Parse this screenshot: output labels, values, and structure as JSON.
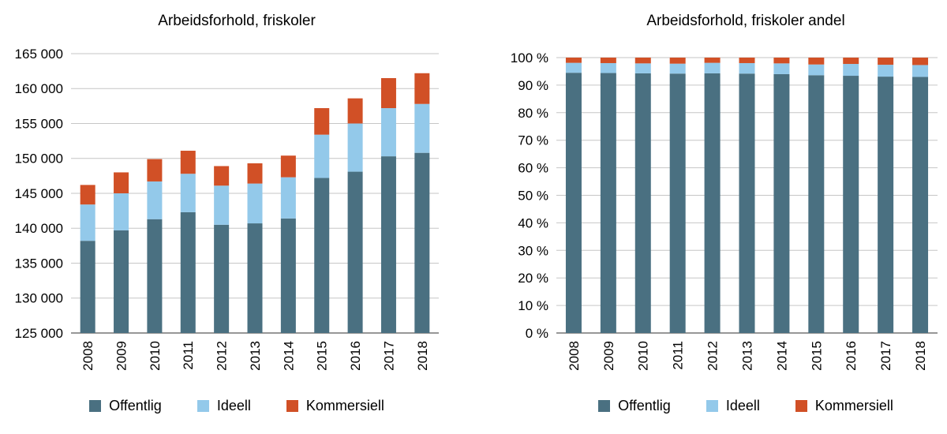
{
  "chart_data": [
    {
      "type": "bar",
      "stacked": true,
      "title": "Arbeidsforhold, friskoler",
      "categories": [
        "2008",
        "2009",
        "2010",
        "2011",
        "2012",
        "2013",
        "2014",
        "2015",
        "2016",
        "2017",
        "2018"
      ],
      "series": [
        {
          "name": "Offentlig",
          "color": "#4a7081",
          "values": [
            138200,
            139700,
            141300,
            142300,
            140500,
            140700,
            141400,
            147200,
            148100,
            150300,
            150800
          ]
        },
        {
          "name": "Ideell",
          "color": "#93c9ea",
          "values": [
            5200,
            5300,
            5400,
            5500,
            5600,
            5700,
            5900,
            6200,
            6900,
            6900,
            7000
          ]
        },
        {
          "name": "Kommersiell",
          "color": "#d15026",
          "values": [
            2800,
            3000,
            3200,
            3300,
            2800,
            2900,
            3100,
            3800,
            3600,
            4300,
            4400
          ]
        }
      ],
      "ylim": [
        125000,
        165000
      ],
      "ytick_step": 5000,
      "ytick_format": "space-thousands",
      "grid": true,
      "legend_position": "bottom"
    },
    {
      "type": "bar",
      "stacked": true,
      "percent": true,
      "title": "Arbeidsforhold, friskoler andel",
      "categories": [
        "2008",
        "2009",
        "2010",
        "2011",
        "2012",
        "2013",
        "2014",
        "2015",
        "2016",
        "2017",
        "2018"
      ],
      "series": [
        {
          "name": "Offentlig",
          "color": "#4a7081",
          "values": [
            94.5,
            94.4,
            94.3,
            94.2,
            94.3,
            94.2,
            94.0,
            93.6,
            93.4,
            93.1,
            93.0
          ]
        },
        {
          "name": "Ideell",
          "color": "#93c9ea",
          "values": [
            3.6,
            3.6,
            3.6,
            3.6,
            3.8,
            3.8,
            3.9,
            3.9,
            4.3,
            4.3,
            4.3
          ]
        },
        {
          "name": "Kommersiell",
          "color": "#d15026",
          "values": [
            1.9,
            2.0,
            2.1,
            2.2,
            1.9,
            2.0,
            2.1,
            2.5,
            2.3,
            2.6,
            2.7
          ]
        }
      ],
      "ylim": [
        0,
        100
      ],
      "ytick_step": 10,
      "ytick_format": "percent",
      "grid": true,
      "legend_position": "bottom"
    }
  ],
  "style": {
    "grid_color": "#c6c6c6",
    "axis_color": "#595959",
    "text_color": "#000000"
  }
}
